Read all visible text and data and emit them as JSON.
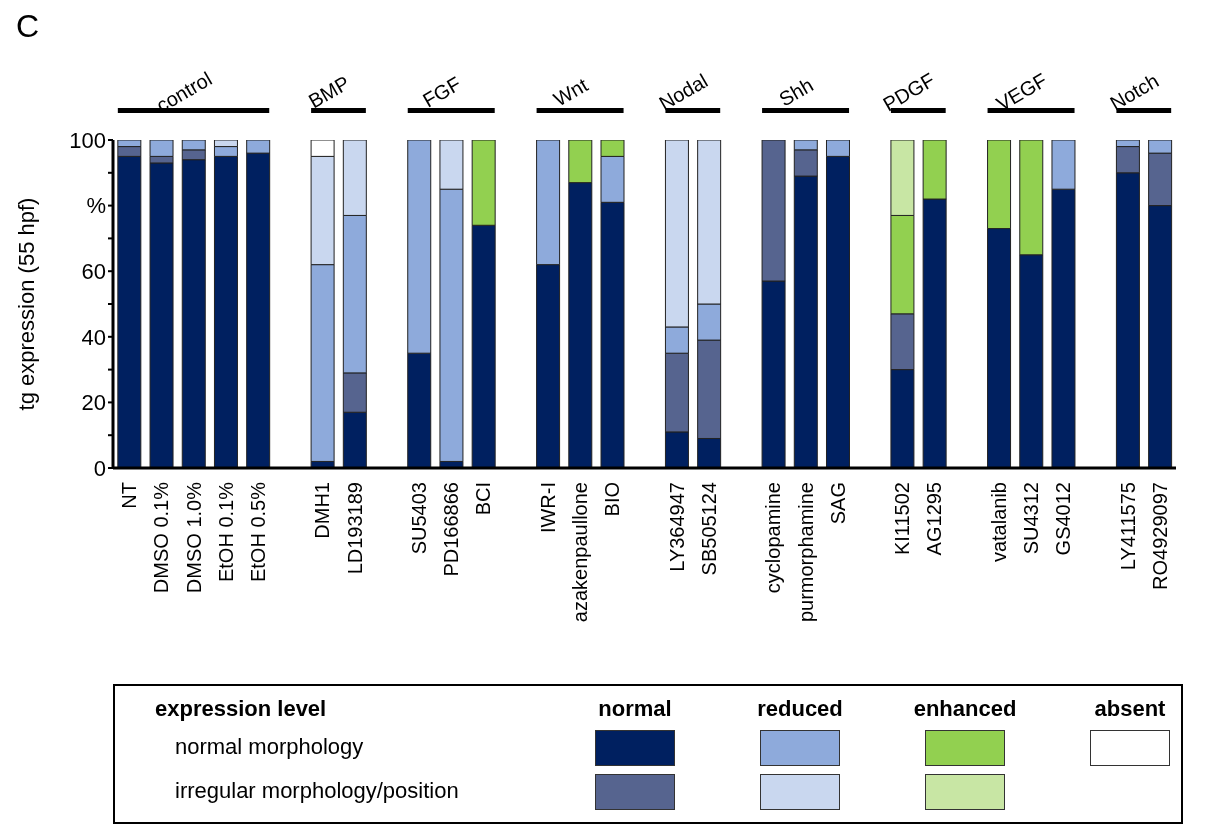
{
  "chart_data": {
    "type": "bar",
    "stacked": true,
    "title": "C",
    "ylabel": "tg expression (55 hpf)",
    "legend_title": "expression level",
    "categories": [
      "NT",
      "DMSO 0.1%",
      "DMSO 1.0%",
      "EtOH 0.1%",
      "EtOH 0.5%",
      null,
      "DMH1",
      "LD193189",
      null,
      "SU5403",
      "PD166866",
      "BCI",
      null,
      "IWR-I",
      "azakenpaullone",
      "BIO",
      null,
      "LY364947",
      "SB505124",
      null,
      "cyclopamine",
      "purmorphamine",
      "SAG",
      null,
      "KI11502",
      "AG1295",
      null,
      "vatalanib",
      "SU4312",
      "GS4012",
      null,
      "LY411575",
      "RO4929097"
    ],
    "series": [
      {
        "color": "#002060",
        "values": [
          95,
          93,
          94,
          95,
          96,
          null,
          2,
          17,
          null,
          35,
          2,
          74,
          null,
          62,
          87,
          81,
          null,
          11,
          9,
          null,
          57,
          89,
          95,
          null,
          30,
          82,
          null,
          73,
          65,
          85,
          null,
          90,
          80
        ]
      },
      {
        "color": "#56648f",
        "values": [
          3,
          2,
          3,
          0,
          0,
          null,
          0,
          12,
          null,
          0,
          0,
          0,
          null,
          0,
          0,
          0,
          null,
          24,
          30,
          null,
          43,
          8,
          0,
          null,
          17,
          0,
          null,
          0,
          0,
          0,
          null,
          8,
          16
        ]
      },
      {
        "color": "#8eaadb",
        "values": [
          2,
          5,
          3,
          3,
          4,
          null,
          60,
          48,
          null,
          65,
          83,
          0,
          null,
          38,
          0,
          14,
          null,
          8,
          11,
          null,
          0,
          3,
          5,
          null,
          0,
          0,
          null,
          0,
          0,
          15,
          null,
          2,
          4
        ]
      },
      {
        "color": "#c9d7ef",
        "values": [
          0,
          0,
          0,
          2,
          0,
          null,
          33,
          23,
          null,
          0,
          15,
          0,
          null,
          0,
          0,
          0,
          null,
          57,
          50,
          null,
          0,
          0,
          0,
          null,
          0,
          0,
          null,
          0,
          0,
          0,
          null,
          0,
          0
        ]
      },
      {
        "color": "#92d050",
        "values": [
          0,
          0,
          0,
          0,
          0,
          null,
          0,
          0,
          null,
          0,
          0,
          26,
          null,
          0,
          13,
          5,
          null,
          0,
          0,
          null,
          0,
          0,
          0,
          null,
          30,
          18,
          null,
          27,
          35,
          0,
          null,
          0,
          0
        ]
      },
      {
        "color": "#c8e6a4",
        "values": [
          0,
          0,
          0,
          0,
          0,
          null,
          0,
          0,
          null,
          0,
          0,
          0,
          null,
          0,
          0,
          0,
          null,
          0,
          0,
          null,
          0,
          0,
          0,
          null,
          23,
          0,
          null,
          0,
          0,
          0,
          null,
          0,
          0
        ]
      },
      {
        "color": "#ffffff",
        "values": [
          0,
          0,
          0,
          0,
          0,
          null,
          5,
          0,
          null,
          0,
          0,
          0,
          null,
          0,
          0,
          0,
          null,
          0,
          0,
          null,
          0,
          0,
          0,
          null,
          0,
          0,
          null,
          0,
          0,
          0,
          null,
          0,
          0
        ]
      }
    ],
    "ylim": [
      0,
      100
    ],
    "yticks": [
      0,
      {
        "value": 10,
        "label": null
      },
      20,
      {
        "value": 30,
        "label": null
      },
      40,
      {
        "value": 50,
        "label": null
      },
      60,
      {
        "value": 70,
        "label": null
      },
      {
        "value": 80,
        "label": "%"
      },
      {
        "value": 90,
        "label": null
      },
      100
    ],
    "annotations": [
      "control",
      "BMP",
      "FGF",
      "Wnt",
      "Nodal",
      "Shh",
      "PDGF",
      "VEGF",
      "Notch",
      "normal",
      "reduced",
      "enhanced",
      "absent",
      "normal morphology",
      "irregular morphology/position"
    ]
  }
}
